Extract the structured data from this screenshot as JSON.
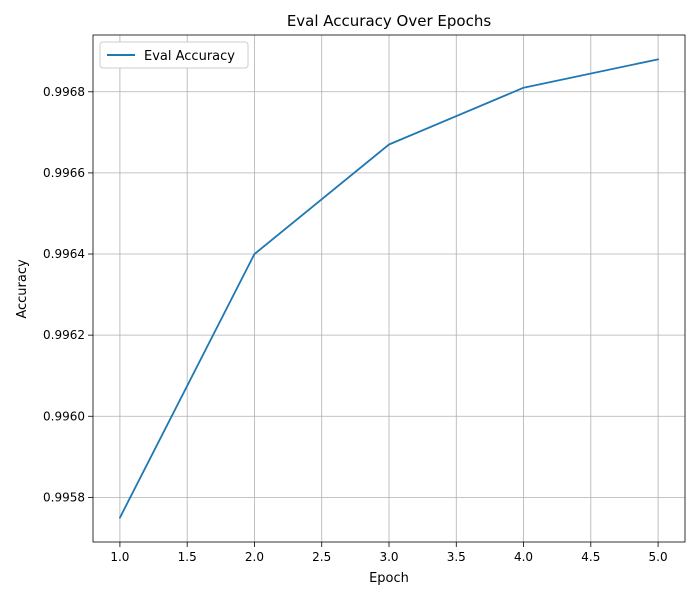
{
  "chart_data": {
    "type": "line",
    "title": "Eval Accuracy Over Epochs",
    "xlabel": "Epoch",
    "ylabel": "Accuracy",
    "xlim": [
      0.8,
      5.2
    ],
    "ylim": [
      0.99569,
      0.99694
    ],
    "xticks": [
      1.0,
      1.5,
      2.0,
      2.5,
      3.0,
      3.5,
      4.0,
      4.5,
      5.0
    ],
    "xtick_labels": [
      "1.0",
      "1.5",
      "2.0",
      "2.5",
      "3.0",
      "3.5",
      "4.0",
      "4.5",
      "5.0"
    ],
    "yticks": [
      0.9958,
      0.996,
      0.9962,
      0.9964,
      0.9966,
      0.9968
    ],
    "ytick_labels": [
      "0.9958",
      "0.9960",
      "0.9962",
      "0.9964",
      "0.9966",
      "0.9968"
    ],
    "grid": true,
    "legend_position": "upper-left",
    "series": [
      {
        "name": "Eval Accuracy",
        "color": "#1f77b4",
        "x": [
          1,
          2,
          3,
          4,
          5
        ],
        "y": [
          0.99575,
          0.9964,
          0.99667,
          0.99681,
          0.99688
        ]
      }
    ]
  }
}
